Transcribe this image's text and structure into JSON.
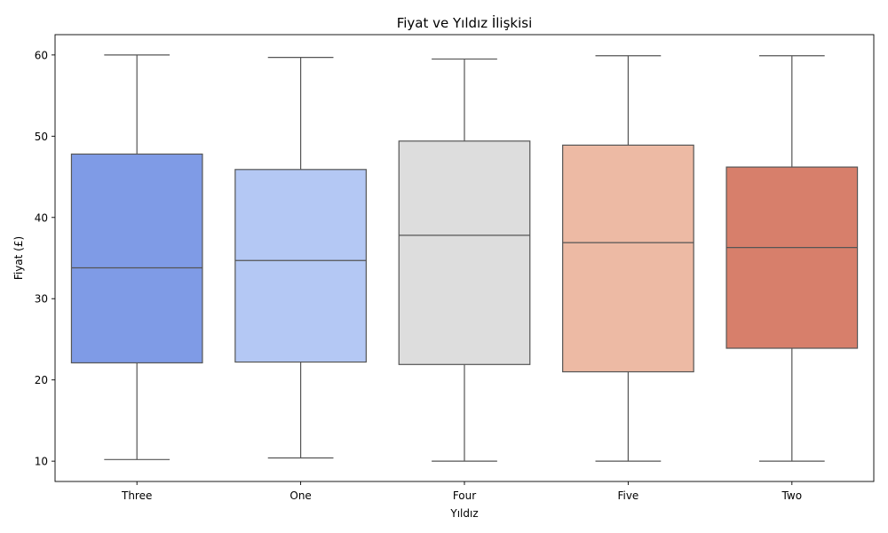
{
  "chart_data": {
    "type": "box",
    "title": "Fiyat ve Yıldız İlişkisi",
    "xlabel": "Yıldız",
    "ylabel": "Fiyat (£)",
    "ylim": [
      7.5,
      62.5
    ],
    "yticks": [
      10,
      20,
      30,
      40,
      50,
      60
    ],
    "grid": false,
    "categories": [
      "Three",
      "One",
      "Four",
      "Five",
      "Two"
    ],
    "colors": [
      "#7f9be6",
      "#b4c8f4",
      "#dddddd",
      "#edbaa4",
      "#d77f6b"
    ],
    "boxes": [
      {
        "category": "Three",
        "min": 10.2,
        "q1": 22.1,
        "median": 33.8,
        "q3": 47.8,
        "max": 60.0
      },
      {
        "category": "One",
        "min": 10.4,
        "q1": 22.2,
        "median": 34.7,
        "q3": 45.9,
        "max": 59.7
      },
      {
        "category": "Four",
        "min": 10.0,
        "q1": 21.9,
        "median": 37.8,
        "q3": 49.4,
        "max": 59.5
      },
      {
        "category": "Five",
        "min": 10.0,
        "q1": 21.0,
        "median": 36.9,
        "q3": 48.9,
        "max": 59.9
      },
      {
        "category": "Two",
        "min": 10.0,
        "q1": 23.9,
        "median": 36.3,
        "q3": 46.2,
        "max": 59.9
      }
    ]
  }
}
